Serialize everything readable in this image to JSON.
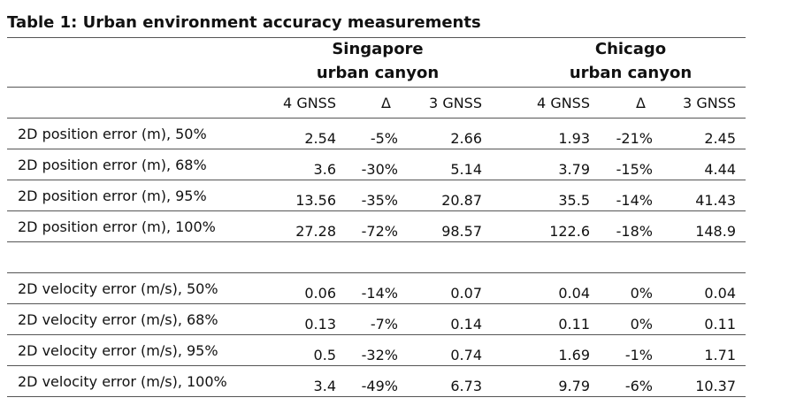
{
  "title": "Table 1: Urban environment accuracy measurements",
  "groups": [
    {
      "name": "Singapore",
      "subtitle": "urban canyon",
      "columns": [
        "4 GNSS",
        "Δ",
        "3 GNSS"
      ]
    },
    {
      "name": "Chicago",
      "subtitle": "urban canyon",
      "columns": [
        "4 GNSS",
        "Δ",
        "3 GNSS"
      ]
    }
  ],
  "sections": [
    {
      "rows": [
        {
          "label": "2D position error (m), 50%",
          "cells": [
            "2.54",
            "-5%",
            "2.66",
            "1.93",
            "-21%",
            "2.45"
          ]
        },
        {
          "label": "2D position error (m), 68%",
          "cells": [
            "3.6",
            "-30%",
            "5.14",
            "3.79",
            "-15%",
            "4.44"
          ]
        },
        {
          "label": "2D position error (m), 95%",
          "cells": [
            "13.56",
            "-35%",
            "20.87",
            "35.5",
            "-14%",
            "41.43"
          ]
        },
        {
          "label": "2D position error (m), 100%",
          "cells": [
            "27.28",
            "-72%",
            "98.57",
            "122.6",
            "-18%",
            "148.9"
          ]
        }
      ]
    },
    {
      "rows": [
        {
          "label": "2D velocity error (m/s), 50%",
          "cells": [
            "0.06",
            "-14%",
            "0.07",
            "0.04",
            "0%",
            "0.04"
          ]
        },
        {
          "label": "2D velocity error (m/s), 68%",
          "cells": [
            "0.13",
            "-7%",
            "0.14",
            "0.11",
            "0%",
            "0.11"
          ]
        },
        {
          "label": "2D velocity error (m/s), 95%",
          "cells": [
            "0.5",
            "-32%",
            "0.74",
            "1.69",
            "-1%",
            "1.71"
          ]
        },
        {
          "label": "2D velocity error (m/s), 100%",
          "cells": [
            "3.4",
            "-49%",
            "6.73",
            "9.79",
            "-6%",
            "10.37"
          ]
        }
      ]
    }
  ]
}
